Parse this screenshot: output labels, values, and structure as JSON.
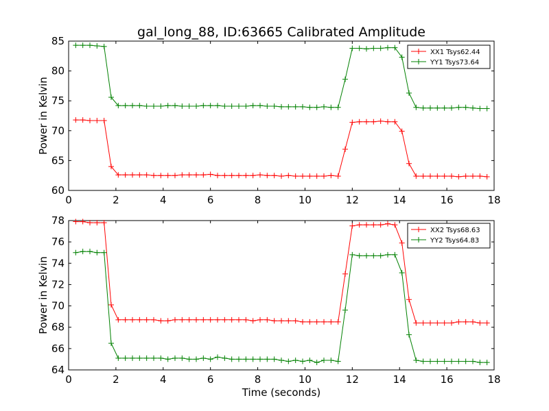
{
  "title": "gal_long_88, ID:63665 Calibrated Amplitude",
  "xlabel": "Time (seconds)",
  "chart_data": [
    {
      "type": "line",
      "title": "gal_long_88, ID:63665 Calibrated Amplitude",
      "xlabel": "",
      "ylabel": "Power in Kelvin",
      "xlim": [
        0,
        18
      ],
      "ylim": [
        60,
        85
      ],
      "xticks": [
        0,
        2,
        4,
        6,
        8,
        10,
        12,
        14,
        16,
        18
      ],
      "yticks": [
        60,
        65,
        70,
        75,
        80,
        85
      ],
      "legend": "top-right",
      "grid": false,
      "x": [
        0.3,
        0.6,
        0.9,
        1.2,
        1.5,
        1.8,
        2.1,
        2.4,
        2.7,
        3.0,
        3.3,
        3.6,
        3.9,
        4.2,
        4.5,
        4.8,
        5.1,
        5.4,
        5.7,
        6.0,
        6.3,
        6.6,
        6.9,
        7.2,
        7.5,
        7.8,
        8.1,
        8.4,
        8.7,
        9.0,
        9.3,
        9.6,
        9.9,
        10.2,
        10.5,
        10.8,
        11.1,
        11.4,
        11.7,
        12.0,
        12.3,
        12.6,
        12.9,
        13.2,
        13.5,
        13.8,
        14.1,
        14.4,
        14.7,
        15.0,
        15.3,
        15.6,
        15.9,
        16.2,
        16.5,
        16.8,
        17.1,
        17.4,
        17.7
      ],
      "series": [
        {
          "name": "XX1 Tsys62.44",
          "color": "#ff0000",
          "values": [
            71.8,
            71.8,
            71.7,
            71.7,
            71.7,
            64.0,
            62.6,
            62.6,
            62.6,
            62.6,
            62.6,
            62.5,
            62.5,
            62.5,
            62.5,
            62.6,
            62.6,
            62.6,
            62.6,
            62.7,
            62.5,
            62.5,
            62.5,
            62.5,
            62.5,
            62.5,
            62.6,
            62.5,
            62.5,
            62.4,
            62.5,
            62.4,
            62.4,
            62.4,
            62.4,
            62.4,
            62.5,
            62.4,
            66.9,
            71.4,
            71.5,
            71.5,
            71.5,
            71.6,
            71.5,
            71.5,
            69.9,
            64.5,
            62.4,
            62.4,
            62.4,
            62.4,
            62.4,
            62.4,
            62.3,
            62.4,
            62.4,
            62.4,
            62.3
          ]
        },
        {
          "name": "YY1 Tsys73.64",
          "color": "#008000",
          "values": [
            84.3,
            84.3,
            84.3,
            84.2,
            84.1,
            75.6,
            74.2,
            74.2,
            74.2,
            74.2,
            74.1,
            74.1,
            74.1,
            74.2,
            74.2,
            74.1,
            74.1,
            74.1,
            74.2,
            74.2,
            74.2,
            74.1,
            74.1,
            74.1,
            74.1,
            74.2,
            74.2,
            74.1,
            74.1,
            74.0,
            74.0,
            74.0,
            74.0,
            73.9,
            73.9,
            74.0,
            73.9,
            73.9,
            78.6,
            83.8,
            83.8,
            83.7,
            83.8,
            83.8,
            83.9,
            83.9,
            82.3,
            76.3,
            73.9,
            73.8,
            73.8,
            73.8,
            73.8,
            73.8,
            73.9,
            73.9,
            73.8,
            73.7,
            73.7
          ]
        }
      ]
    },
    {
      "type": "line",
      "title": "",
      "xlabel": "Time (seconds)",
      "ylabel": "Power in Kelvin",
      "xlim": [
        0,
        18
      ],
      "ylim": [
        64,
        78
      ],
      "xticks": [
        0,
        2,
        4,
        6,
        8,
        10,
        12,
        14,
        16,
        18
      ],
      "yticks": [
        64,
        66,
        68,
        70,
        72,
        74,
        76,
        78
      ],
      "legend": "top-right",
      "grid": false,
      "x": [
        0.3,
        0.6,
        0.9,
        1.2,
        1.5,
        1.8,
        2.1,
        2.4,
        2.7,
        3.0,
        3.3,
        3.6,
        3.9,
        4.2,
        4.5,
        4.8,
        5.1,
        5.4,
        5.7,
        6.0,
        6.3,
        6.6,
        6.9,
        7.2,
        7.5,
        7.8,
        8.1,
        8.4,
        8.7,
        9.0,
        9.3,
        9.6,
        9.9,
        10.2,
        10.5,
        10.8,
        11.1,
        11.4,
        11.7,
        12.0,
        12.3,
        12.6,
        12.9,
        13.2,
        13.5,
        13.8,
        14.1,
        14.4,
        14.7,
        15.0,
        15.3,
        15.6,
        15.9,
        16.2,
        16.5,
        16.8,
        17.1,
        17.4,
        17.7
      ],
      "series": [
        {
          "name": "XX2 Tsys68.63",
          "color": "#ff0000",
          "values": [
            77.9,
            77.9,
            77.8,
            77.8,
            77.8,
            70.1,
            68.7,
            68.7,
            68.7,
            68.7,
            68.7,
            68.7,
            68.6,
            68.6,
            68.7,
            68.7,
            68.7,
            68.7,
            68.7,
            68.7,
            68.7,
            68.7,
            68.7,
            68.7,
            68.7,
            68.6,
            68.7,
            68.7,
            68.6,
            68.6,
            68.6,
            68.6,
            68.5,
            68.5,
            68.5,
            68.5,
            68.5,
            68.5,
            73.0,
            77.5,
            77.6,
            77.6,
            77.6,
            77.6,
            77.7,
            77.6,
            75.9,
            70.6,
            68.4,
            68.4,
            68.4,
            68.4,
            68.4,
            68.4,
            68.5,
            68.5,
            68.5,
            68.4,
            68.4
          ]
        },
        {
          "name": "YY2 Tsys64.83",
          "color": "#008000",
          "values": [
            75.0,
            75.1,
            75.1,
            75.0,
            75.0,
            66.5,
            65.1,
            65.1,
            65.1,
            65.1,
            65.1,
            65.1,
            65.1,
            65.0,
            65.1,
            65.1,
            65.0,
            65.0,
            65.1,
            65.0,
            65.2,
            65.1,
            65.0,
            65.0,
            65.0,
            65.0,
            65.0,
            65.0,
            65.0,
            64.9,
            64.8,
            64.9,
            64.8,
            64.9,
            64.7,
            64.9,
            64.9,
            64.8,
            69.6,
            74.8,
            74.7,
            74.7,
            74.7,
            74.7,
            74.8,
            74.8,
            73.1,
            67.3,
            64.9,
            64.8,
            64.8,
            64.8,
            64.8,
            64.8,
            64.8,
            64.8,
            64.8,
            64.7,
            64.7
          ]
        }
      ]
    }
  ]
}
